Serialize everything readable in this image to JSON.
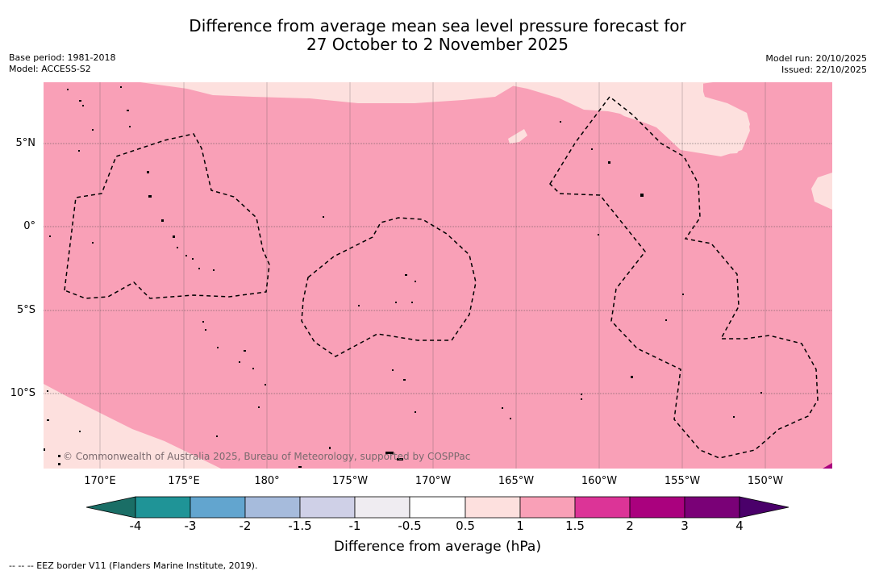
{
  "title": {
    "line1": "Difference from average mean sea level pressure forecast for",
    "line2": "27 October to 2 November 2025"
  },
  "meta_left": {
    "base_period": "Base period: 1981-2018",
    "model": "Model: ACCESS-S2"
  },
  "meta_right": {
    "model_run": "Model run: 20/10/2025",
    "issued": "Issued: 22/10/2025"
  },
  "map": {
    "latitude_labels": [
      "5°N",
      "0°",
      "5°S",
      "10°S"
    ],
    "longitude_labels": [
      "170°E",
      "175°E",
      "180°",
      "175°W",
      "170°W",
      "165°W",
      "160°W",
      "155°W",
      "150°W"
    ],
    "copyright": "© Commonwealth of Australia 2025, Bureau of Meteorology, supported by COSPPac",
    "colors": {
      "anomaly_0_5_to_1": "#fde0de",
      "anomaly_1_to_1_5": "#f9a0b7",
      "anomaly_2_to_3": "#aa017e"
    }
  },
  "colorbar": {
    "tick_labels": [
      "-4",
      "-3",
      "-2",
      "-1.5",
      "-1",
      "-0.5",
      "0.5",
      "1",
      "1.5",
      "2",
      "3",
      "4"
    ],
    "label": "Difference from average (hPa)",
    "colors": [
      "#1a6e66",
      "#1f9497",
      "#62a5cf",
      "#a6bbdc",
      "#cfd0e7",
      "#efecf1",
      "#ffffff",
      "#fde0de",
      "#f9a0b7",
      "#dc3497",
      "#aa017e",
      "#7a0177",
      "#4a006a"
    ]
  },
  "footer": "-- -- -- EEZ border V11 (Flanders Marine Institute, 2019)."
}
